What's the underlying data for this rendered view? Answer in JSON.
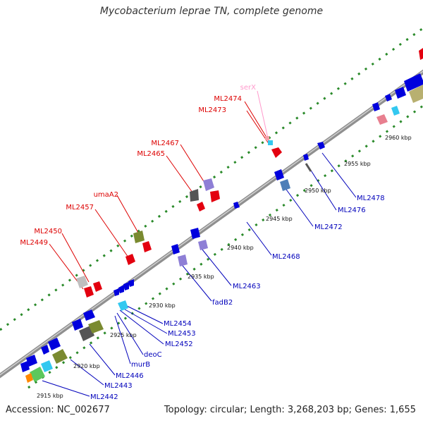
{
  "title": "Mycobacterium leprae TN, complete genome",
  "footer": {
    "accession": "Accession: NC_002677",
    "topology": "Topology: circular; Length: 3,268,203 bp; Genes: 1,655"
  },
  "colors": {
    "backbone": "#8f8f8f",
    "tick": "#2a8a2a",
    "forward_label": "#dd0000",
    "reverse_label": "#0000bb",
    "faint_label": "#ff99cc"
  },
  "kbp_ticks": [
    "2915 kbp",
    "2920 kbp",
    "2925 kbp",
    "2930 kbp",
    "2935 kbp",
    "2940 kbp",
    "2945 kbp",
    "2950 kbp",
    "2955 kbp",
    "2960 kbp"
  ],
  "forward_labels": [
    "serX",
    "ML2474",
    "ML2473",
    "ML2467",
    "ML2465",
    "umaA2",
    "ML2457",
    "ML2450",
    "ML2449"
  ],
  "reverse_labels": [
    "ML2478",
    "ML2476",
    "ML2472",
    "ML2468",
    "ML2463",
    "fadB2",
    "ML2454",
    "ML2453",
    "ML2452",
    "deoC",
    "murB",
    "ML2446",
    "ML2443",
    "ML2442"
  ]
}
